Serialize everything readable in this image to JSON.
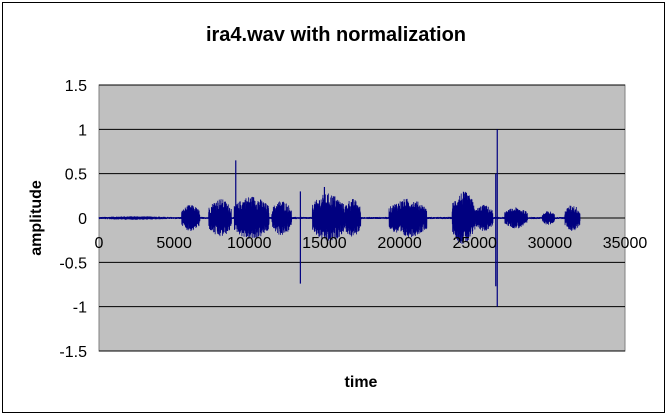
{
  "chart_data": {
    "type": "line",
    "title": "ira4.wav with normalization",
    "xlabel": "time",
    "ylabel": "amplitude",
    "xlim": [
      0,
      35000
    ],
    "ylim": [
      -1.5,
      1.5
    ],
    "x_ticks": [
      0,
      5000,
      10000,
      15000,
      20000,
      25000,
      30000,
      35000
    ],
    "x_tick_labels": [
      "0",
      "5000",
      "10000",
      "15000",
      "20000",
      "25000",
      "30000",
      "35000"
    ],
    "y_ticks": [
      1.5,
      1,
      0.5,
      0,
      -0.5,
      -1,
      -1.5
    ],
    "y_tick_labels": [
      "1.5",
      "1",
      "0.5",
      "0",
      "-0.5",
      "-1",
      "-1.5"
    ],
    "grid": "horizontal",
    "plot_background": "#c0c0c0",
    "series_color": "#000080",
    "series": [
      {
        "x_range": [
          0,
          32000
        ],
        "envelope": [
          {
            "x_start": 0,
            "x_end": 4800,
            "amp": 0.02
          },
          {
            "x_start": 5500,
            "x_end": 6700,
            "amp": 0.15
          },
          {
            "x_start": 7300,
            "x_end": 8800,
            "amp": 0.22
          },
          {
            "x_start": 9000,
            "x_end": 11300,
            "amp": 0.25
          },
          {
            "x_start": 11500,
            "x_end": 12800,
            "amp": 0.2
          },
          {
            "x_start": 14200,
            "x_end": 16300,
            "amp": 0.28
          },
          {
            "x_start": 16300,
            "x_end": 17400,
            "amp": 0.22
          },
          {
            "x_start": 19300,
            "x_end": 21800,
            "amp": 0.22
          },
          {
            "x_start": 23500,
            "x_end": 25000,
            "amp": 0.3
          },
          {
            "x_start": 25000,
            "x_end": 26200,
            "amp": 0.15
          },
          {
            "x_start": 27000,
            "x_end": 28500,
            "amp": 0.12
          },
          {
            "x_start": 29500,
            "x_end": 30300,
            "amp": 0.08
          },
          {
            "x_start": 31000,
            "x_end": 32000,
            "amp": 0.15
          }
        ],
        "spikes": [
          {
            "x": 9100,
            "y_max": 0.65,
            "y_min": -0.08
          },
          {
            "x": 13400,
            "y_max": 0.3,
            "y_min": -0.74
          },
          {
            "x": 15000,
            "y_max": 0.35,
            "y_min": -0.2
          },
          {
            "x": 26400,
            "y_max": 0.5,
            "y_min": -0.77
          },
          {
            "x": 26500,
            "y_max": 1.0,
            "y_min": -1.0
          }
        ]
      }
    ]
  }
}
